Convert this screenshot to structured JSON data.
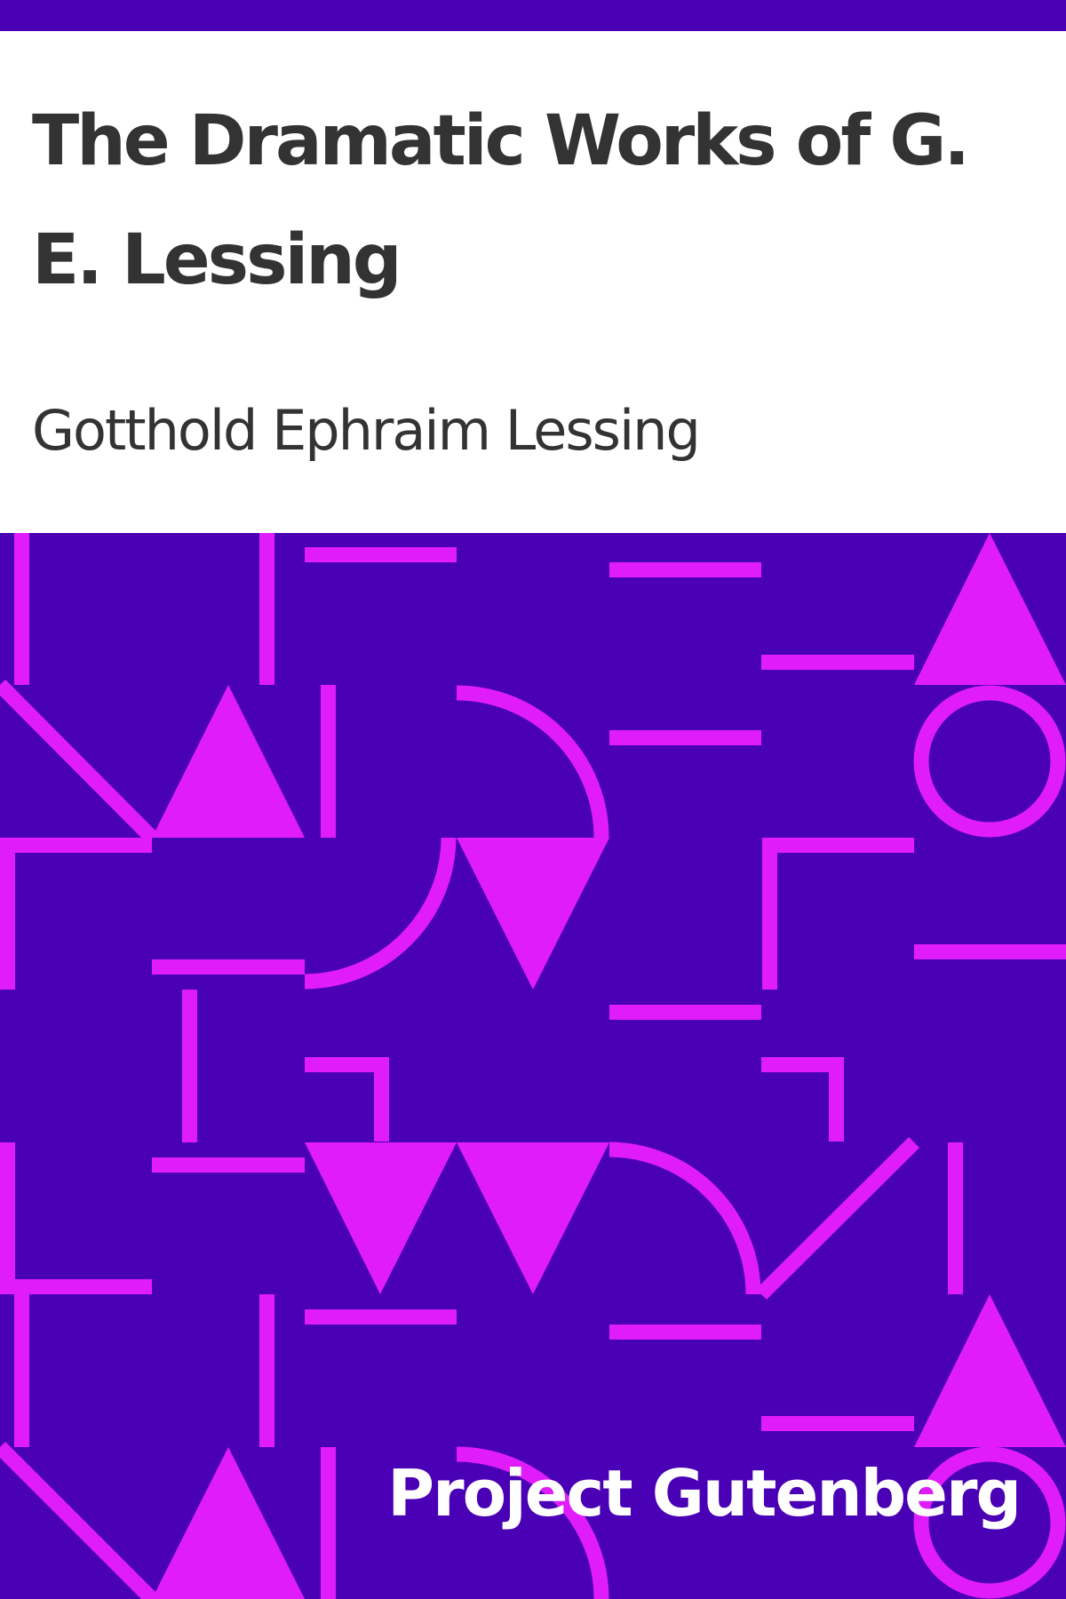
{
  "cover": {
    "title": "The Dramatic Works of G. E. Lessing",
    "author": "Gotthold Ephraim Lessing",
    "publisher": "Project Gutenberg"
  },
  "colors": {
    "background_purple": "#4a00b4",
    "pattern_magenta": "#e01cfa",
    "text_dark": "#333333",
    "text_light": "#ffffff"
  }
}
